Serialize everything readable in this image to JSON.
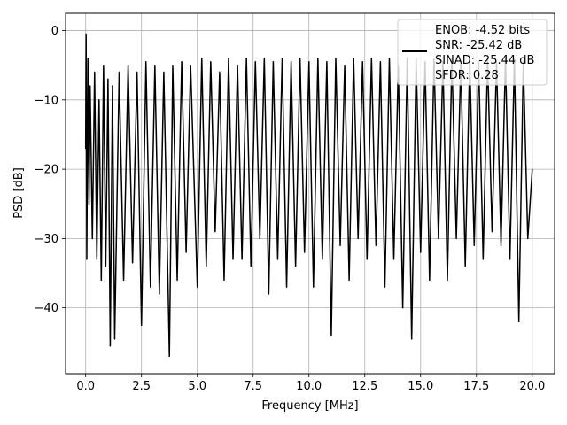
{
  "chart_data": {
    "type": "line",
    "title": "",
    "xlabel": "Frequency [MHz]",
    "ylabel": "PSD [dB]",
    "xlim": [
      -0.9,
      21.0
    ],
    "ylim": [
      -49.5,
      2.5
    ],
    "xticks": [
      0.0,
      2.5,
      5.0,
      7.5,
      10.0,
      12.5,
      15.0,
      17.5,
      20.0
    ],
    "xtick_labels": [
      "0.0",
      "2.5",
      "5.0",
      "7.5",
      "10.0",
      "12.5",
      "15.0",
      "17.5",
      "20.0"
    ],
    "yticks": [
      0,
      -10,
      -20,
      -30,
      -40
    ],
    "ytick_labels": [
      "0",
      "−10",
      "−20",
      "−30",
      "−40"
    ],
    "grid": true,
    "legend_position": "top-right",
    "legend_entries": [
      "ENOB: -4.52 bits",
      "SNR: -25.42 dB",
      "SINAD: -25.44 dB",
      "SFDR: 0.28"
    ],
    "series": [
      {
        "color": "#000000",
        "x": [
          0.0,
          0.02,
          0.05,
          0.1,
          0.15,
          0.2,
          0.3,
          0.4,
          0.5,
          0.6,
          0.7,
          0.8,
          0.9,
          1.0,
          1.1,
          1.2,
          1.3,
          1.5,
          1.7,
          1.9,
          2.1,
          2.3,
          2.5,
          2.7,
          2.9,
          3.1,
          3.3,
          3.5,
          3.75,
          3.9,
          4.1,
          4.3,
          4.5,
          4.7,
          5.0,
          5.2,
          5.4,
          5.6,
          5.8,
          6.0,
          6.2,
          6.4,
          6.6,
          6.8,
          7.0,
          7.2,
          7.4,
          7.6,
          7.8,
          8.0,
          8.2,
          8.4,
          8.6,
          8.8,
          9.0,
          9.2,
          9.4,
          9.6,
          9.8,
          10.0,
          10.2,
          10.4,
          10.6,
          10.8,
          11.0,
          11.2,
          11.4,
          11.6,
          11.8,
          12.0,
          12.2,
          12.4,
          12.6,
          12.8,
          13.0,
          13.2,
          13.4,
          13.6,
          13.8,
          14.0,
          14.2,
          14.4,
          14.6,
          14.8,
          15.0,
          15.2,
          15.4,
          15.6,
          15.8,
          16.0,
          16.2,
          16.4,
          16.6,
          16.8,
          17.0,
          17.2,
          17.4,
          17.6,
          17.8,
          18.0,
          18.2,
          18.4,
          18.6,
          18.8,
          19.0,
          19.2,
          19.4,
          19.6,
          19.8,
          20.0
        ],
        "y": [
          -17.0,
          -0.5,
          -33.0,
          -4.0,
          -25.0,
          -8.0,
          -30.0,
          -6.0,
          -33.0,
          -10.0,
          -36.0,
          -5.0,
          -34.0,
          -7.0,
          -45.5,
          -8.0,
          -44.5,
          -6.0,
          -36.0,
          -5.0,
          -33.5,
          -6.0,
          -42.5,
          -4.5,
          -37.0,
          -5.0,
          -38.0,
          -6.0,
          -47.0,
          -5.0,
          -36.0,
          -4.5,
          -32.0,
          -5.0,
          -37.0,
          -4.0,
          -34.0,
          -4.5,
          -29.0,
          -6.0,
          -36.0,
          -4.0,
          -33.0,
          -5.0,
          -33.0,
          -4.0,
          -34.0,
          -4.5,
          -30.0,
          -4.0,
          -38.0,
          -4.5,
          -33.0,
          -4.0,
          -37.0,
          -4.5,
          -34.0,
          -4.0,
          -32.0,
          -4.5,
          -37.0,
          -4.0,
          -33.0,
          -4.5,
          -44.0,
          -4.0,
          -31.0,
          -5.0,
          -36.0,
          -4.0,
          -30.0,
          -4.5,
          -33.0,
          -4.0,
          -31.0,
          -4.5,
          -37.0,
          -4.0,
          -33.0,
          -5.0,
          -40.0,
          -4.0,
          -44.5,
          -4.0,
          -32.0,
          -4.5,
          -36.0,
          -4.0,
          -30.0,
          -4.5,
          -36.0,
          -4.0,
          -30.0,
          -4.5,
          -34.0,
          -4.0,
          -31.0,
          -4.5,
          -33.0,
          -4.0,
          -29.0,
          -4.5,
          -31.0,
          -4.0,
          -33.0,
          -4.0,
          -42.0,
          -4.5,
          -30.0,
          -20.0
        ]
      }
    ]
  }
}
